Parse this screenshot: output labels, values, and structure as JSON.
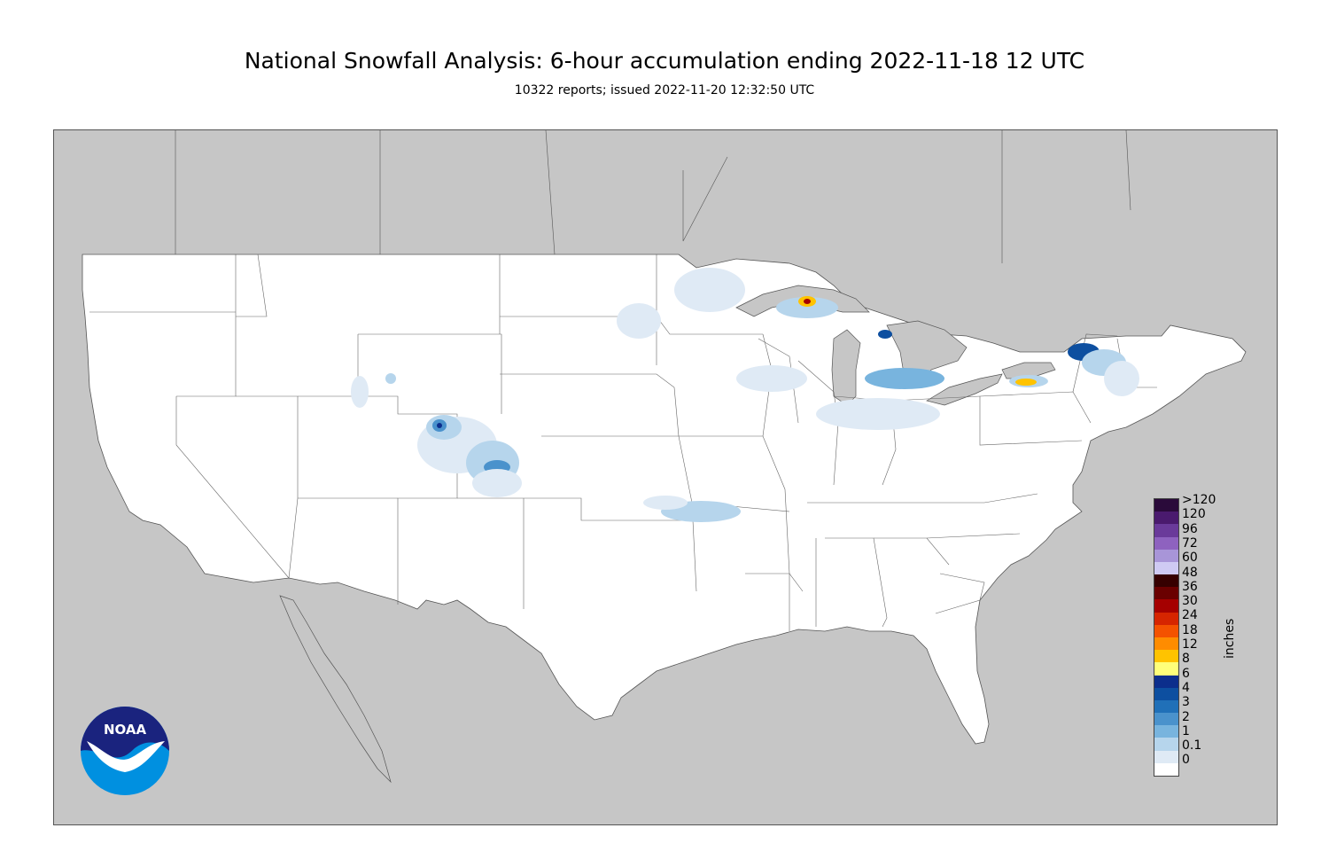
{
  "header": {
    "title": "National Snowfall Analysis: 6-hour accumulation ending 2022-11-18 12 UTC",
    "subtitle": "10322 reports; issued 2022-11-20 12:32:50 UTC"
  },
  "logo": {
    "text": "NOAA",
    "icon": "noaa-logo"
  },
  "legend": {
    "units": "inches",
    "levels": [
      {
        "label": ">120",
        "color": "#2a0a3a"
      },
      {
        "label": "120",
        "color": "#4a1a6e"
      },
      {
        "label": "96",
        "color": "#6a3a9a"
      },
      {
        "label": "72",
        "color": "#8e62bf"
      },
      {
        "label": "60",
        "color": "#a895d8"
      },
      {
        "label": "48",
        "color": "#cfcaf3"
      },
      {
        "label": "36",
        "color": "#360000"
      },
      {
        "label": "30",
        "color": "#6a0000"
      },
      {
        "label": "24",
        "color": "#a50000"
      },
      {
        "label": "18",
        "color": "#d62500"
      },
      {
        "label": "12",
        "color": "#f45200"
      },
      {
        "label": "8",
        "color": "#ff8c00"
      },
      {
        "label": "6",
        "color": "#ffc300"
      },
      {
        "label": "4",
        "color": "#ffff7a"
      },
      {
        "label": "3",
        "color": "#0c2e8c"
      },
      {
        "label": "2",
        "color": "#0d4fa0"
      },
      {
        "label": "1",
        "color": "#2070b8"
      },
      {
        "label": "0.1",
        "color": "#4a92cc"
      },
      {
        "label": "0",
        "color": "#78b4de"
      },
      {
        "label": "",
        "color": "#b6d5ec"
      },
      {
        "label": "",
        "color": "#dfeaf5"
      },
      {
        "label": "",
        "color": "#ffffff"
      }
    ]
  },
  "map_colors": {
    "land": "#ffffff",
    "surround": "#c6c6c6",
    "border": "#666666"
  }
}
